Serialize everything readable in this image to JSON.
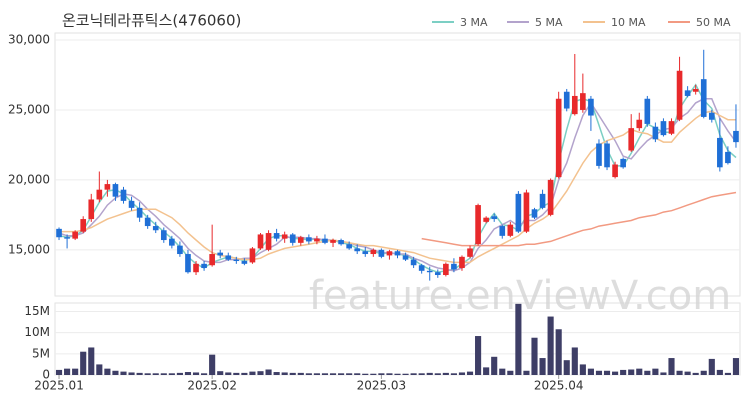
{
  "chart_data": [
    {
      "type": "candlestick",
      "title": "온코닉테라퓨틱스(476060)",
      "watermark": "feature.enViewV.com",
      "up_color": "#e8292b",
      "down_color": "#1f6fd6",
      "grid": true,
      "legend": "top-right",
      "ylim": [
        11700,
        30500
      ],
      "yticks": [
        {
          "value": 15000,
          "label": "15,000"
        },
        {
          "value": 20000,
          "label": "20,000"
        },
        {
          "value": 25000,
          "label": "25,000"
        },
        {
          "value": 30000,
          "label": "30,000"
        }
      ],
      "open": [
        16500,
        15900,
        15800,
        16300,
        17200,
        18600,
        19300,
        19700,
        19300,
        18500,
        18000,
        17300,
        16700,
        16400,
        15800,
        15300,
        14700,
        13400,
        14000,
        13900,
        14800,
        14600,
        14300,
        14200,
        14100,
        15100,
        15000,
        16200,
        15800,
        16100,
        15500,
        15900,
        15600,
        15800,
        15500,
        15700,
        15400,
        15100,
        14900,
        14700,
        15000,
        14600,
        14900,
        14600,
        14300,
        13900,
        13500,
        13400,
        13200,
        14000,
        13700,
        14500,
        15400,
        17000,
        17400,
        16700,
        16000,
        19000,
        16300,
        17900,
        19000,
        17500,
        20200,
        26300,
        24700,
        25000,
        25800,
        22600,
        22600,
        20200,
        21500,
        22100,
        23700,
        25800,
        23800,
        24200,
        23300,
        24300,
        26400,
        26300,
        27200,
        24800,
        23000,
        22000,
        23500
      ],
      "high": [
        16600,
        16100,
        16400,
        17400,
        19000,
        20600,
        20000,
        19800,
        19500,
        18800,
        18400,
        17500,
        17000,
        16600,
        16000,
        15600,
        15000,
        14200,
        14200,
        16800,
        15000,
        14800,
        14500,
        14400,
        15200,
        16200,
        16400,
        16500,
        16300,
        16200,
        16000,
        16100,
        16000,
        16100,
        15800,
        15800,
        15600,
        15400,
        15200,
        15100,
        15100,
        15000,
        15000,
        14800,
        14500,
        14000,
        13800,
        13600,
        14100,
        14400,
        14600,
        15300,
        18300,
        17400,
        17600,
        16800,
        17000,
        19200,
        19300,
        18000,
        19300,
        20100,
        26300,
        26500,
        29000,
        27600,
        26000,
        22900,
        22800,
        21300,
        21600,
        24700,
        24800,
        26000,
        24100,
        24400,
        24400,
        28800,
        26700,
        26800,
        29300,
        25000,
        24400,
        22400,
        25400
      ],
      "low": [
        15700,
        15100,
        15700,
        16200,
        17000,
        18400,
        18800,
        18500,
        18300,
        17800,
        17000,
        16500,
        16200,
        15500,
        15100,
        14500,
        13300,
        13200,
        13500,
        13800,
        14400,
        14200,
        14000,
        13900,
        14000,
        15000,
        14900,
        15600,
        15500,
        15300,
        15300,
        15400,
        15400,
        15400,
        15200,
        15300,
        15000,
        14700,
        14500,
        14500,
        14400,
        14300,
        14400,
        14200,
        13700,
        13300,
        12800,
        13000,
        13100,
        13400,
        13500,
        14400,
        15300,
        16900,
        17000,
        15800,
        15900,
        16200,
        16200,
        17200,
        17900,
        17400,
        20100,
        24900,
        24600,
        24800,
        23500,
        20800,
        20700,
        20100,
        20800,
        22000,
        23500,
        23800,
        22700,
        23100,
        23200,
        24200,
        25900,
        26100,
        24400,
        24100,
        20600,
        21100,
        22300
      ],
      "close": [
        15900,
        15800,
        16300,
        17200,
        18600,
        19300,
        19700,
        18800,
        18500,
        18000,
        17300,
        16700,
        16400,
        15700,
        15300,
        14700,
        13400,
        14000,
        13700,
        14700,
        14600,
        14300,
        14200,
        14000,
        15100,
        16100,
        16200,
        15800,
        16100,
        15500,
        15900,
        15600,
        15800,
        15500,
        15700,
        15400,
        15100,
        14900,
        14700,
        15000,
        14500,
        14900,
        14600,
        14300,
        13900,
        13500,
        13400,
        13200,
        14000,
        13600,
        14500,
        15100,
        18200,
        17300,
        17200,
        16000,
        16800,
        16300,
        19100,
        17300,
        18000,
        20000,
        25800,
        25100,
        26000,
        26200,
        24600,
        21000,
        20900,
        21100,
        20900,
        23700,
        24300,
        24000,
        22900,
        23200,
        24200,
        27800,
        26000,
        26500,
        24500,
        24300,
        20900,
        21200,
        22700
      ],
      "series": [
        {
          "name": "3 MA",
          "color": "#7ccfc4",
          "values": [
            16000,
            15900,
            16000,
            16400,
            17400,
            18400,
            19200,
            19300,
            19000,
            18400,
            17900,
            17300,
            16800,
            16300,
            15800,
            15200,
            14500,
            14000,
            13700,
            14100,
            14300,
            14500,
            14400,
            14200,
            14400,
            15100,
            15800,
            16000,
            16000,
            15800,
            15800,
            15700,
            15800,
            15600,
            15700,
            15500,
            15400,
            15100,
            14900,
            14900,
            14700,
            14800,
            14700,
            14600,
            14300,
            13900,
            13600,
            13400,
            13500,
            13600,
            14000,
            14400,
            15900,
            16900,
            17600,
            16800,
            16700,
            16400,
            17400,
            17600,
            18100,
            18400,
            21300,
            23600,
            25600,
            25800,
            25600,
            23900,
            22200,
            21000,
            21000,
            21900,
            23000,
            24000,
            23700,
            23400,
            23400,
            25100,
            26000,
            26800,
            25700,
            25100,
            23200,
            22100,
            21600
          ]
        },
        {
          "name": "5 MA",
          "color": "#b3a3cc",
          "values": [
            16200,
            16000,
            16000,
            16200,
            16800,
            17400,
            18200,
            18700,
            19000,
            18900,
            18500,
            17900,
            17400,
            16800,
            16300,
            15800,
            15100,
            14600,
            14200,
            14100,
            14100,
            14300,
            14300,
            14400,
            14400,
            14800,
            15100,
            15400,
            15900,
            15900,
            15900,
            15800,
            15800,
            15700,
            15700,
            15600,
            15500,
            15300,
            15200,
            15000,
            14800,
            14800,
            14700,
            14700,
            14400,
            14200,
            13900,
            13700,
            13600,
            13500,
            13700,
            14100,
            15100,
            15700,
            16500,
            16800,
            17100,
            16700,
            17100,
            17100,
            17500,
            18100,
            20000,
            21200,
            23000,
            24600,
            25500,
            24600,
            23700,
            22800,
            21700,
            21500,
            22200,
            22800,
            23200,
            23600,
            23700,
            24400,
            24800,
            25500,
            25800,
            25800,
            24400,
            23500,
            22700
          ]
        },
        {
          "name": "10 MA",
          "color": "#f3c28f",
          "values": [
            16300,
            16300,
            16300,
            16400,
            16600,
            16900,
            17200,
            17400,
            17600,
            17800,
            17900,
            17900,
            17900,
            17600,
            17300,
            16800,
            16200,
            15700,
            15200,
            14800,
            14600,
            14500,
            14400,
            14300,
            14300,
            14400,
            14700,
            14900,
            15100,
            15200,
            15300,
            15400,
            15500,
            15600,
            15700,
            15600,
            15500,
            15400,
            15300,
            15300,
            15200,
            15100,
            15000,
            14900,
            14800,
            14600,
            14400,
            14300,
            14200,
            14100,
            14100,
            14100,
            14500,
            14800,
            15100,
            15400,
            15700,
            16000,
            16500,
            16900,
            17200,
            17600,
            18400,
            19200,
            20200,
            21200,
            22000,
            22500,
            22800,
            23000,
            23200,
            23600,
            23400,
            23300,
            23000,
            22700,
            22700,
            23400,
            23900,
            24400,
            24800,
            24900,
            24600,
            24300,
            24300
          ]
        },
        {
          "name": "50 MA",
          "color": "#f29a82",
          "values": [
            null,
            null,
            null,
            null,
            null,
            null,
            null,
            null,
            null,
            null,
            null,
            null,
            null,
            null,
            null,
            null,
            null,
            null,
            null,
            null,
            null,
            null,
            null,
            null,
            null,
            null,
            null,
            null,
            null,
            null,
            null,
            null,
            null,
            null,
            null,
            null,
            null,
            null,
            null,
            null,
            null,
            null,
            null,
            null,
            null,
            15800,
            15700,
            15600,
            15500,
            15400,
            15300,
            15300,
            15300,
            15300,
            15300,
            15300,
            15300,
            15300,
            15400,
            15400,
            15500,
            15600,
            15800,
            16000,
            16200,
            16400,
            16500,
            16700,
            16800,
            16900,
            17000,
            17100,
            17300,
            17400,
            17500,
            17700,
            17800,
            18000,
            18200,
            18400,
            18600,
            18800,
            18900,
            19000,
            19100
          ]
        }
      ]
    },
    {
      "type": "bar",
      "color": "#3e3e66",
      "ylim": [
        0,
        17000000
      ],
      "yticks": [
        {
          "value": 0,
          "label": "0"
        },
        {
          "value": 5000000,
          "label": "5M"
        },
        {
          "value": 10000000,
          "label": "10M"
        },
        {
          "value": 15000000,
          "label": "15M"
        }
      ],
      "categories": [
        "2025.01",
        null,
        null,
        null,
        null,
        null,
        null,
        null,
        null,
        null,
        null,
        null,
        null,
        null,
        null,
        null,
        null,
        null,
        null,
        "2025.02",
        null,
        null,
        null,
        null,
        null,
        null,
        null,
        null,
        null,
        null,
        null,
        null,
        null,
        null,
        null,
        null,
        null,
        null,
        null,
        null,
        "2025.03",
        null,
        null,
        null,
        null,
        null,
        null,
        null,
        null,
        null,
        null,
        null,
        null,
        null,
        null,
        null,
        null,
        null,
        null,
        null,
        null,
        null,
        "2025.04",
        null,
        null,
        null,
        null,
        null,
        null,
        null,
        null,
        null,
        null,
        null,
        null,
        null,
        null,
        null,
        null,
        null,
        null,
        null,
        null,
        null,
        null
      ],
      "values": [
        1200000,
        1500000,
        1500000,
        5500000,
        6500000,
        2500000,
        1500000,
        1000000,
        800000,
        600000,
        500000,
        400000,
        400000,
        400000,
        400000,
        500000,
        700000,
        600000,
        400000,
        4800000,
        900000,
        600000,
        500000,
        500000,
        800000,
        900000,
        1300000,
        700000,
        600000,
        500000,
        500000,
        400000,
        400000,
        400000,
        400000,
        400000,
        400000,
        400000,
        300000,
        300000,
        400000,
        400000,
        300000,
        300000,
        400000,
        400000,
        500000,
        400000,
        500000,
        400000,
        600000,
        800000,
        9200000,
        1800000,
        4300000,
        1500000,
        1000000,
        16800000,
        1000000,
        8800000,
        4000000,
        13800000,
        10800000,
        3500000,
        6500000,
        2500000,
        1500000,
        1000000,
        1000000,
        800000,
        1200000,
        1300000,
        1500000,
        1000000,
        1500000,
        600000,
        4000000,
        1000000,
        800000,
        500000,
        1000000,
        3800000,
        1200000,
        500000,
        4000000
      ]
    }
  ]
}
